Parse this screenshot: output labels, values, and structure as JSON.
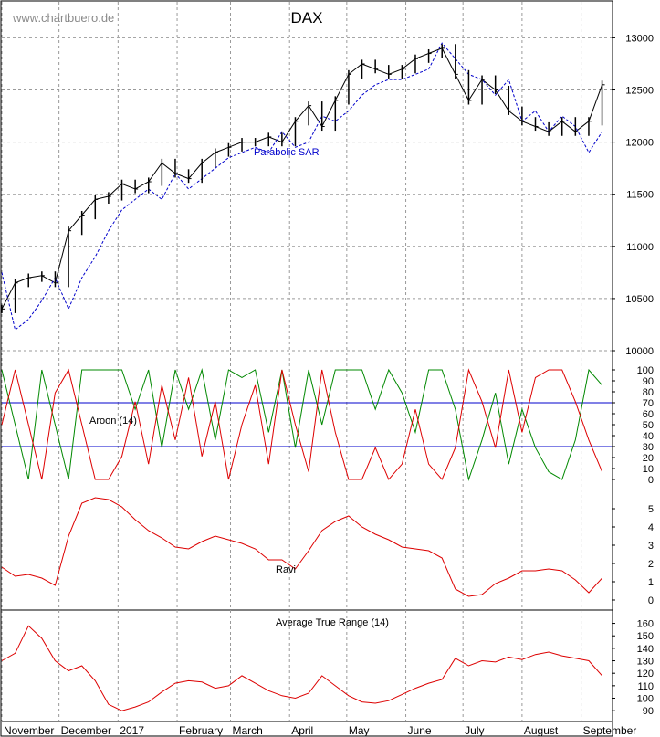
{
  "site_label": "www.chartbuero.de",
  "colors": {
    "price": "#000000",
    "sar": "#0000cc",
    "aroon_up": "#008800",
    "aroon_down": "#dd0000",
    "ravi": "#dd0000",
    "atr": "#dd0000",
    "grid": "#9a9a9a",
    "level_lines": "#0000cc"
  },
  "x_axis": {
    "months": [
      "November",
      "December",
      "2017",
      "February",
      "March",
      "April",
      "May",
      "June",
      "July",
      "August",
      "September"
    ]
  },
  "chart_data": [
    {
      "id": "price",
      "type": "ohlc",
      "title": "DAX",
      "ylim": [
        10000,
        13100
      ],
      "yticks": [
        10000,
        10500,
        11000,
        11500,
        12000,
        12500,
        13000
      ],
      "grid": true,
      "x": [
        "2016-11-01",
        "2016-11-08",
        "2016-11-15",
        "2016-11-22",
        "2016-11-29",
        "2016-12-06",
        "2016-12-13",
        "2016-12-20",
        "2016-12-27",
        "2017-01-03",
        "2017-01-10",
        "2017-01-17",
        "2017-01-24",
        "2017-01-31",
        "2017-02-07",
        "2017-02-14",
        "2017-02-21",
        "2017-02-28",
        "2017-03-07",
        "2017-03-14",
        "2017-03-21",
        "2017-03-28",
        "2017-04-04",
        "2017-04-11",
        "2017-04-18",
        "2017-04-25",
        "2017-05-02",
        "2017-05-09",
        "2017-05-16",
        "2017-05-23",
        "2017-05-30",
        "2017-06-06",
        "2017-06-13",
        "2017-06-20",
        "2017-06-27",
        "2017-07-04",
        "2017-07-11",
        "2017-07-18",
        "2017-07-25",
        "2017-08-01",
        "2017-08-08",
        "2017-08-15",
        "2017-08-22",
        "2017-08-29",
        "2017-09-05",
        "2017-09-12"
      ],
      "close": [
        10400,
        10650,
        10700,
        10720,
        10650,
        11150,
        11300,
        11450,
        11480,
        11600,
        11550,
        11620,
        11800,
        11700,
        11650,
        11800,
        11900,
        11950,
        12000,
        12000,
        12050,
        12000,
        12200,
        12350,
        12150,
        12400,
        12650,
        12750,
        12700,
        12650,
        12700,
        12800,
        12850,
        12900,
        12650,
        12400,
        12600,
        12500,
        12300,
        12200,
        12150,
        12100,
        12200,
        12100,
        12200,
        12550
      ],
      "series": [
        {
          "name": "Parabolic SAR",
          "values": [
            10750,
            10200,
            10300,
            10480,
            10700,
            10400,
            10700,
            10900,
            11150,
            11350,
            11450,
            11550,
            11450,
            11700,
            11550,
            11650,
            11750,
            11850,
            11900,
            11950,
            11900,
            12100,
            11950,
            12000,
            12250,
            12200,
            12300,
            12450,
            12550,
            12600,
            12600,
            12650,
            12700,
            12950,
            12800,
            12650,
            12600,
            12450,
            12600,
            12200,
            12300,
            12100,
            12250,
            12150,
            11900,
            12100
          ]
        }
      ],
      "annotations": [
        {
          "text": "Parabolic SAR"
        }
      ]
    },
    {
      "id": "aroon",
      "type": "line",
      "ylim": [
        0,
        100
      ],
      "yticks": [
        0,
        10,
        20,
        30,
        40,
        50,
        60,
        70,
        80,
        90,
        100
      ],
      "reference_lines": [
        30,
        70
      ],
      "series": [
        {
          "name": "Aroon (14)",
          "values": [
            100,
            50,
            0,
            100,
            50,
            0,
            100,
            100,
            100,
            100,
            64,
            100,
            29,
            100,
            64,
            100,
            36,
            100,
            93,
            100,
            43,
            100,
            29,
            100,
            50,
            100,
            100,
            100,
            64,
            100,
            79,
            43,
            100,
            100,
            64,
            0,
            36,
            79,
            14,
            64,
            29,
            7,
            0,
            36,
            100,
            86
          ]
        },
        {
          "values": [
            50,
            100,
            50,
            0,
            79,
            100,
            50,
            0,
            0,
            21,
            71,
            14,
            86,
            36,
            93,
            21,
            71,
            0,
            50,
            86,
            14,
            100,
            50,
            7,
            100,
            43,
            0,
            0,
            29,
            0,
            14,
            64,
            14,
            0,
            29,
            100,
            71,
            29,
            100,
            43,
            93,
            100,
            100,
            71,
            36,
            7
          ]
        }
      ]
    },
    {
      "id": "ravi",
      "type": "line",
      "ylim": [
        -0.4,
        5.6
      ],
      "yticks": [
        0,
        1,
        2,
        3,
        4,
        5
      ],
      "series": [
        {
          "name": "Ravi",
          "values": [
            1.8,
            1.3,
            1.4,
            1.2,
            0.8,
            3.5,
            5.3,
            5.6,
            5.5,
            5.1,
            4.4,
            3.8,
            3.4,
            2.9,
            2.8,
            3.2,
            3.5,
            3.3,
            3.1,
            2.8,
            2.2,
            2.2,
            1.7,
            2.7,
            3.8,
            4.3,
            4.6,
            4.0,
            3.6,
            3.3,
            2.9,
            2.8,
            2.7,
            2.3,
            0.6,
            0.2,
            0.3,
            0.9,
            1.2,
            1.6,
            1.6,
            1.7,
            1.6,
            1.1,
            0.4,
            1.2
          ]
        }
      ]
    },
    {
      "id": "atr",
      "type": "line",
      "ylim": [
        85,
        167
      ],
      "yticks": [
        90,
        100,
        110,
        120,
        130,
        140,
        150,
        160
      ],
      "series": [
        {
          "name": "Average True Range (14)",
          "values": [
            130,
            136,
            158,
            148,
            130,
            122,
            126,
            114,
            95,
            90,
            93,
            97,
            105,
            112,
            114,
            113,
            108,
            110,
            118,
            112,
            106,
            102,
            100,
            104,
            118,
            110,
            102,
            97,
            96,
            98,
            103,
            108,
            112,
            115,
            132,
            126,
            130,
            129,
            133,
            131,
            135,
            137,
            134,
            132,
            130,
            118
          ]
        }
      ]
    }
  ]
}
